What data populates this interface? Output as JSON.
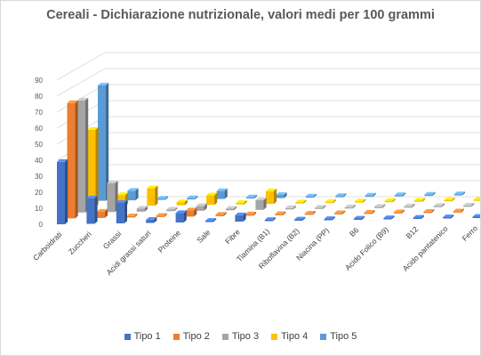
{
  "chart_data": {
    "type": "bar",
    "title": "Cereali - Dichiarazione nutrizionale, valori medi per 100 grammi",
    "categories": [
      "Carboidrati",
      "Zuccheri",
      "Grassi",
      "Acidi grassi saturi",
      "Proteine",
      "Sale",
      "Fibre",
      "Tiamina (B1)",
      "Riboflavina (B2)",
      "Niacina (PP)",
      "B6",
      "Acido Folico (B9)",
      "B12",
      "Acido pantatenico",
      "Ferro"
    ],
    "y_ticks": [
      "0",
      "10",
      "20",
      "30",
      "40",
      "50",
      "60",
      "70",
      "80",
      "90"
    ],
    "ylim": [
      0,
      90
    ],
    "grid": true,
    "legend_position": "bottom",
    "series": [
      {
        "name": "Tipo 1",
        "color": "#4472C4",
        "values": [
          39,
          16,
          13,
          2,
          6,
          0,
          4,
          0,
          0,
          0,
          0,
          0,
          0,
          0,
          0
        ]
      },
      {
        "name": "Tipo 2",
        "color": "#ED7D31",
        "values": [
          72,
          4,
          0.5,
          0.5,
          4,
          1,
          1,
          0,
          0,
          0,
          0,
          0,
          0,
          0,
          0
        ]
      },
      {
        "name": "Tipo 3",
        "color": "#A5A5A5",
        "values": [
          70,
          18,
          2,
          1,
          3,
          1,
          6,
          0,
          0,
          0,
          0,
          0,
          0,
          0,
          0
        ]
      },
      {
        "name": "Tipo 4",
        "color": "#FFC000",
        "values": [
          48,
          7,
          11,
          2,
          6,
          1,
          8,
          0,
          0,
          0,
          0,
          0,
          0,
          0,
          0
        ]
      },
      {
        "name": "Tipo 5",
        "color": "#5B9BD5",
        "values": [
          72,
          6,
          0.5,
          0.5,
          5,
          0.5,
          2,
          0.5,
          0,
          0,
          0,
          0,
          0,
          0,
          0
        ]
      }
    ]
  }
}
